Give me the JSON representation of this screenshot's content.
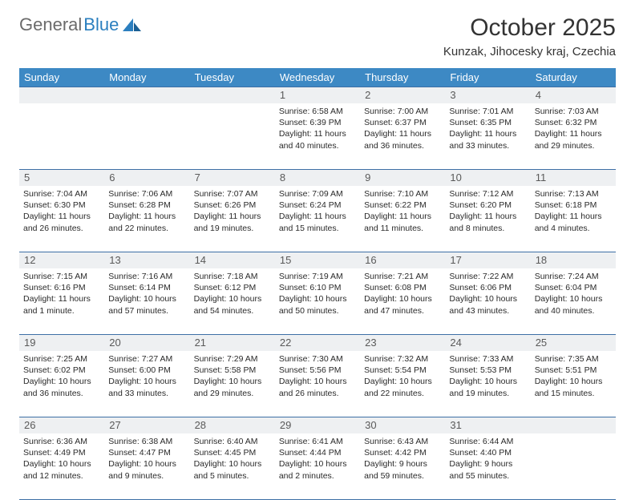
{
  "logo": {
    "text_gray": "General",
    "text_blue": "Blue",
    "sail_color": "#2b7fbf"
  },
  "title": "October 2025",
  "subtitle": "Kunzak, Jihocesky kraj, Czechia",
  "header_bg": "#3d89c4",
  "daynum_bg": "#eef0f2",
  "border_color": "#3d6fa5",
  "day_names": [
    "Sunday",
    "Monday",
    "Tuesday",
    "Wednesday",
    "Thursday",
    "Friday",
    "Saturday"
  ],
  "weeks": [
    [
      {
        "n": "",
        "sr": "",
        "ss": "",
        "dl": ""
      },
      {
        "n": "",
        "sr": "",
        "ss": "",
        "dl": ""
      },
      {
        "n": "",
        "sr": "",
        "ss": "",
        "dl": ""
      },
      {
        "n": "1",
        "sr": "Sunrise: 6:58 AM",
        "ss": "Sunset: 6:39 PM",
        "dl": "Daylight: 11 hours and 40 minutes."
      },
      {
        "n": "2",
        "sr": "Sunrise: 7:00 AM",
        "ss": "Sunset: 6:37 PM",
        "dl": "Daylight: 11 hours and 36 minutes."
      },
      {
        "n": "3",
        "sr": "Sunrise: 7:01 AM",
        "ss": "Sunset: 6:35 PM",
        "dl": "Daylight: 11 hours and 33 minutes."
      },
      {
        "n": "4",
        "sr": "Sunrise: 7:03 AM",
        "ss": "Sunset: 6:32 PM",
        "dl": "Daylight: 11 hours and 29 minutes."
      }
    ],
    [
      {
        "n": "5",
        "sr": "Sunrise: 7:04 AM",
        "ss": "Sunset: 6:30 PM",
        "dl": "Daylight: 11 hours and 26 minutes."
      },
      {
        "n": "6",
        "sr": "Sunrise: 7:06 AM",
        "ss": "Sunset: 6:28 PM",
        "dl": "Daylight: 11 hours and 22 minutes."
      },
      {
        "n": "7",
        "sr": "Sunrise: 7:07 AM",
        "ss": "Sunset: 6:26 PM",
        "dl": "Daylight: 11 hours and 19 minutes."
      },
      {
        "n": "8",
        "sr": "Sunrise: 7:09 AM",
        "ss": "Sunset: 6:24 PM",
        "dl": "Daylight: 11 hours and 15 minutes."
      },
      {
        "n": "9",
        "sr": "Sunrise: 7:10 AM",
        "ss": "Sunset: 6:22 PM",
        "dl": "Daylight: 11 hours and 11 minutes."
      },
      {
        "n": "10",
        "sr": "Sunrise: 7:12 AM",
        "ss": "Sunset: 6:20 PM",
        "dl": "Daylight: 11 hours and 8 minutes."
      },
      {
        "n": "11",
        "sr": "Sunrise: 7:13 AM",
        "ss": "Sunset: 6:18 PM",
        "dl": "Daylight: 11 hours and 4 minutes."
      }
    ],
    [
      {
        "n": "12",
        "sr": "Sunrise: 7:15 AM",
        "ss": "Sunset: 6:16 PM",
        "dl": "Daylight: 11 hours and 1 minute."
      },
      {
        "n": "13",
        "sr": "Sunrise: 7:16 AM",
        "ss": "Sunset: 6:14 PM",
        "dl": "Daylight: 10 hours and 57 minutes."
      },
      {
        "n": "14",
        "sr": "Sunrise: 7:18 AM",
        "ss": "Sunset: 6:12 PM",
        "dl": "Daylight: 10 hours and 54 minutes."
      },
      {
        "n": "15",
        "sr": "Sunrise: 7:19 AM",
        "ss": "Sunset: 6:10 PM",
        "dl": "Daylight: 10 hours and 50 minutes."
      },
      {
        "n": "16",
        "sr": "Sunrise: 7:21 AM",
        "ss": "Sunset: 6:08 PM",
        "dl": "Daylight: 10 hours and 47 minutes."
      },
      {
        "n": "17",
        "sr": "Sunrise: 7:22 AM",
        "ss": "Sunset: 6:06 PM",
        "dl": "Daylight: 10 hours and 43 minutes."
      },
      {
        "n": "18",
        "sr": "Sunrise: 7:24 AM",
        "ss": "Sunset: 6:04 PM",
        "dl": "Daylight: 10 hours and 40 minutes."
      }
    ],
    [
      {
        "n": "19",
        "sr": "Sunrise: 7:25 AM",
        "ss": "Sunset: 6:02 PM",
        "dl": "Daylight: 10 hours and 36 minutes."
      },
      {
        "n": "20",
        "sr": "Sunrise: 7:27 AM",
        "ss": "Sunset: 6:00 PM",
        "dl": "Daylight: 10 hours and 33 minutes."
      },
      {
        "n": "21",
        "sr": "Sunrise: 7:29 AM",
        "ss": "Sunset: 5:58 PM",
        "dl": "Daylight: 10 hours and 29 minutes."
      },
      {
        "n": "22",
        "sr": "Sunrise: 7:30 AM",
        "ss": "Sunset: 5:56 PM",
        "dl": "Daylight: 10 hours and 26 minutes."
      },
      {
        "n": "23",
        "sr": "Sunrise: 7:32 AM",
        "ss": "Sunset: 5:54 PM",
        "dl": "Daylight: 10 hours and 22 minutes."
      },
      {
        "n": "24",
        "sr": "Sunrise: 7:33 AM",
        "ss": "Sunset: 5:53 PM",
        "dl": "Daylight: 10 hours and 19 minutes."
      },
      {
        "n": "25",
        "sr": "Sunrise: 7:35 AM",
        "ss": "Sunset: 5:51 PM",
        "dl": "Daylight: 10 hours and 15 minutes."
      }
    ],
    [
      {
        "n": "26",
        "sr": "Sunrise: 6:36 AM",
        "ss": "Sunset: 4:49 PM",
        "dl": "Daylight: 10 hours and 12 minutes."
      },
      {
        "n": "27",
        "sr": "Sunrise: 6:38 AM",
        "ss": "Sunset: 4:47 PM",
        "dl": "Daylight: 10 hours and 9 minutes."
      },
      {
        "n": "28",
        "sr": "Sunrise: 6:40 AM",
        "ss": "Sunset: 4:45 PM",
        "dl": "Daylight: 10 hours and 5 minutes."
      },
      {
        "n": "29",
        "sr": "Sunrise: 6:41 AM",
        "ss": "Sunset: 4:44 PM",
        "dl": "Daylight: 10 hours and 2 minutes."
      },
      {
        "n": "30",
        "sr": "Sunrise: 6:43 AM",
        "ss": "Sunset: 4:42 PM",
        "dl": "Daylight: 9 hours and 59 minutes."
      },
      {
        "n": "31",
        "sr": "Sunrise: 6:44 AM",
        "ss": "Sunset: 4:40 PM",
        "dl": "Daylight: 9 hours and 55 minutes."
      },
      {
        "n": "",
        "sr": "",
        "ss": "",
        "dl": ""
      }
    ]
  ]
}
